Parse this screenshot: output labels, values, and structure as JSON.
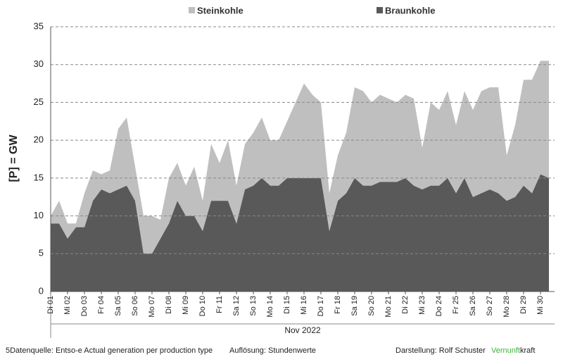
{
  "chart_data": {
    "type": "stacked_area",
    "legend_position": "top",
    "y_label": "[P]  = GW",
    "x_label": "Nov 2022",
    "source": "5Datenquelle: Entso-e  Actual generation per production type",
    "resolution": "Auflösung: Stundenwerte",
    "author": "Darstellung:  Rolf Schuster",
    "brand_part1": "Vernunft",
    "brand_part2": "kraft",
    "categories": [
      "Di 01",
      null,
      "Mi 02",
      null,
      "Do 03",
      null,
      "Fr 04",
      null,
      "Sa 05",
      null,
      "So 06",
      null,
      "Mo 07",
      null,
      "Di 08",
      null,
      "Mi 09",
      null,
      "Do 10",
      null,
      "Fr 11",
      null,
      "Sa 12",
      null,
      "So 13",
      null,
      "Mo 14",
      null,
      "Di 15",
      null,
      "Mi 16",
      null,
      "Do 17",
      null,
      "Fr 18",
      null,
      "Sa 19",
      null,
      "So 20",
      null,
      "Mo 21",
      null,
      "Di 22",
      null,
      "Mi 23",
      null,
      "Do 24",
      null,
      "Fr 25",
      null,
      "Sa 26",
      null,
      "So 27",
      null,
      "Mo 28",
      null,
      "Di 29",
      null,
      "Mi 30",
      null
    ],
    "series": [
      {
        "name": "Braunkohle",
        "color": "#595959",
        "values": [
          9,
          9,
          7,
          8.5,
          8.5,
          12,
          13.5,
          13,
          13.5,
          14,
          12,
          5,
          5,
          7,
          9,
          12,
          10,
          10,
          8,
          12,
          12,
          12,
          9,
          13.5,
          14,
          15,
          14,
          14,
          15,
          15,
          15,
          15,
          15,
          8,
          12,
          13,
          15,
          14,
          14,
          14.5,
          14.5,
          14.5,
          15,
          14,
          13.5,
          14,
          14,
          15,
          13,
          15,
          12.5,
          13,
          13.5,
          13,
          12,
          12.5,
          14,
          13,
          15.5,
          15
        ]
      },
      {
        "name": "Steinkohle",
        "color": "#bfbfbf",
        "values": [
          1,
          3,
          2,
          0.5,
          4.5,
          4,
          2,
          3,
          8,
          9,
          4.5,
          5,
          5,
          2.5,
          6,
          5,
          4,
          6.5,
          4,
          7.5,
          5,
          8,
          5,
          6,
          7,
          8,
          6,
          6,
          7.5,
          10,
          12.5,
          11,
          10,
          5,
          6,
          8,
          12,
          12.5,
          11,
          11.5,
          11,
          10.5,
          11,
          11.5,
          5.5,
          11,
          10,
          11.5,
          9,
          11.5,
          11.5,
          13.5,
          13.5,
          14,
          6,
          9.5,
          14,
          15,
          15,
          15.5
        ]
      }
    ],
    "ylim": [
      0,
      35
    ],
    "yticks": [
      0,
      5,
      10,
      15,
      20,
      25,
      30,
      35
    ],
    "grid": true
  }
}
